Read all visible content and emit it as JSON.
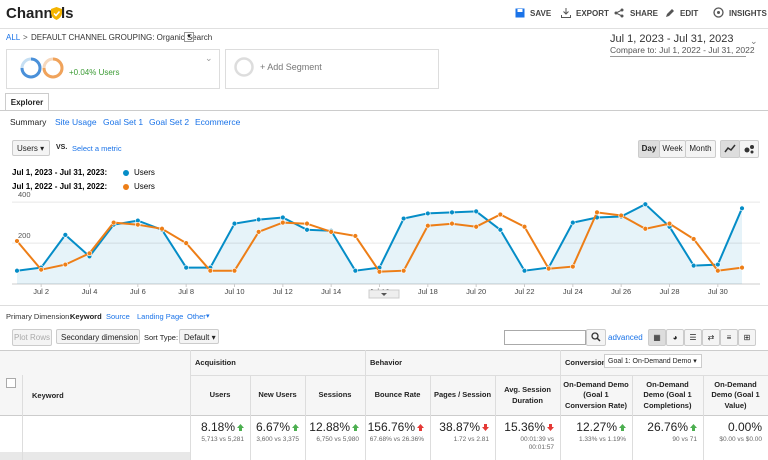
{
  "header": {
    "title": "Channels",
    "actions": [
      "SAVE",
      "EXPORT",
      "SHARE",
      "EDIT",
      "INSIGHTS"
    ]
  },
  "breadcrumb": {
    "root": "ALL",
    "separator": ">",
    "current": "DEFAULT CHANNEL GROUPING: Organic Search"
  },
  "date_range": {
    "current": "Jul 1, 2023 - Jul 31, 2023",
    "compare": "Compare to: Jul 1, 2022 - Jul 31, 2022"
  },
  "segments": {
    "segment_change": "+0.04% Users",
    "add": "+ Add Segment"
  },
  "tabs": {
    "main": "Explorer",
    "sub": [
      "Summary",
      "Site Usage",
      "Goal Set 1",
      "Goal Set 2",
      "Ecommerce"
    ]
  },
  "metric_controls": {
    "metric": "Users",
    "vs": "VS.",
    "select": "Select a metric",
    "periods": [
      "Day",
      "Week",
      "Month"
    ]
  },
  "chart_data": {
    "type": "line",
    "categories": [
      null,
      "Jul 2",
      null,
      "Jul 4",
      null,
      "Jul 6",
      null,
      "Jul 8",
      null,
      "Jul 10",
      null,
      "Jul 12",
      null,
      "Jul 14",
      null,
      "Jul 16",
      null,
      "Jul 18",
      null,
      "Jul 20",
      null,
      "Jul 22",
      null,
      "Jul 24",
      null,
      "Jul 26",
      null,
      "Jul 28",
      null,
      "Jul 30",
      null
    ],
    "series": [
      {
        "label": "Jul 1, 2023 - Jul 31, 2023:",
        "name": "Users",
        "color": "#058dc7",
        "area": true,
        "values": [
          65,
          80,
          240,
          135,
          290,
          310,
          265,
          80,
          80,
          295,
          315,
          325,
          265,
          260,
          65,
          80,
          320,
          345,
          350,
          355,
          265,
          65,
          80,
          300,
          325,
          330,
          390,
          280,
          90,
          95,
          370
        ]
      },
      {
        "label": "Jul 1, 2022 - Jul 31, 2022:",
        "name": "Users",
        "color": "#ed7e17",
        "area": false,
        "values": [
          210,
          70,
          95,
          150,
          300,
          290,
          270,
          200,
          65,
          65,
          255,
          300,
          295,
          255,
          235,
          60,
          65,
          285,
          295,
          280,
          340,
          280,
          75,
          85,
          350,
          335,
          270,
          295,
          220,
          65,
          80
        ]
      }
    ],
    "ylim": [
      0,
      440
    ],
    "yticks": [
      200,
      400
    ],
    "grid": true
  },
  "dimension_bar": {
    "label": "Primary Dimension:",
    "options": [
      "Keyword",
      "Source",
      "Landing Page",
      "Other"
    ]
  },
  "table_controls": {
    "plot_rows": "Plot Rows",
    "secondary": "Secondary dimension",
    "sort_label": "Sort Type:",
    "sort": "Default",
    "advanced": "advanced"
  },
  "table": {
    "groups": [
      "Acquisition",
      "Behavior",
      "Conversions"
    ],
    "goal_select": "Goal 1: On-Demand Demo",
    "columns": [
      "Keyword",
      "Users",
      "New Users",
      "Sessions",
      "Bounce Rate",
      "Pages / Session",
      "Avg. Session Duration",
      "On-Demand Demo (Goal 1 Conversion Rate)",
      "On-Demand Demo (Goal 1 Completions)",
      "On-Demand Demo (Goal 1 Value)"
    ],
    "totals": [
      {
        "change": "8.18%",
        "compare": "5,713 vs 5,281",
        "trend": "up",
        "color": "#4caf50"
      },
      {
        "change": "6.67%",
        "compare": "3,600 vs 3,375",
        "trend": "up",
        "color": "#4caf50"
      },
      {
        "change": "12.88%",
        "compare": "6,750 vs 5,980",
        "trend": "up",
        "color": "#4caf50"
      },
      {
        "change": "156.76%",
        "compare": "67.68% vs 26.36%",
        "trend": "up",
        "color": "#e53935"
      },
      {
        "change": "38.87%",
        "compare": "1.72 vs 2.81",
        "trend": "down",
        "color": "#e53935"
      },
      {
        "change": "15.36%",
        "compare": "00:01:39 vs 00:01:57",
        "trend": "down",
        "color": "#e53935"
      },
      {
        "change": "12.27%",
        "compare": "1.33% vs 1.19%",
        "trend": "up",
        "color": "#4caf50"
      },
      {
        "change": "26.76%",
        "compare": "90 vs 71",
        "trend": "up",
        "color": "#4caf50"
      },
      {
        "change": "0.00%",
        "compare": "$0.00 vs $0.00",
        "trend": null,
        "color": "#999999"
      }
    ]
  }
}
